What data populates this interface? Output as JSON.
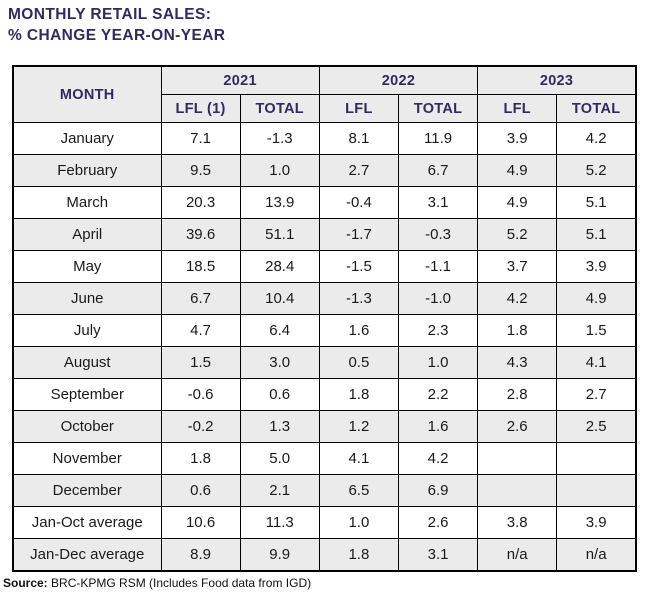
{
  "title": {
    "line1": "MONTHLY RETAIL SALES:",
    "line2": "% CHANGE YEAR-ON-YEAR"
  },
  "chart_data": {
    "type": "table",
    "title": "MONTHLY RETAIL SALES: % CHANGE YEAR-ON-YEAR",
    "month_header": "MONTH",
    "year_groups": [
      "2021",
      "2022",
      "2023"
    ],
    "sub_headers": [
      "LFL (1)",
      "TOTAL",
      "LFL",
      "TOTAL",
      "LFL",
      "TOTAL"
    ],
    "rows": [
      {
        "month": "January",
        "values": [
          "7.1",
          "-1.3",
          "8.1",
          "11.9",
          "3.9",
          "4.2"
        ]
      },
      {
        "month": "February",
        "values": [
          "9.5",
          "1.0",
          "2.7",
          "6.7",
          "4.9",
          "5.2"
        ]
      },
      {
        "month": "March",
        "values": [
          "20.3",
          "13.9",
          "-0.4",
          "3.1",
          "4.9",
          "5.1"
        ]
      },
      {
        "month": "April",
        "values": [
          "39.6",
          "51.1",
          "-1.7",
          "-0.3",
          "5.2",
          "5.1"
        ]
      },
      {
        "month": "May",
        "values": [
          "18.5",
          "28.4",
          "-1.5",
          "-1.1",
          "3.7",
          "3.9"
        ]
      },
      {
        "month": "June",
        "values": [
          "6.7",
          "10.4",
          "-1.3",
          "-1.0",
          "4.2",
          "4.9"
        ]
      },
      {
        "month": "July",
        "values": [
          "4.7",
          "6.4",
          "1.6",
          "2.3",
          "1.8",
          "1.5"
        ]
      },
      {
        "month": "August",
        "values": [
          "1.5",
          "3.0",
          "0.5",
          "1.0",
          "4.3",
          "4.1"
        ]
      },
      {
        "month": "September",
        "values": [
          "-0.6",
          "0.6",
          "1.8",
          "2.2",
          "2.8",
          "2.7"
        ]
      },
      {
        "month": "October",
        "values": [
          "-0.2",
          "1.3",
          "1.2",
          "1.6",
          "2.6",
          "2.5"
        ]
      },
      {
        "month": "November",
        "values": [
          "1.8",
          "5.0",
          "4.1",
          "4.2",
          "",
          ""
        ]
      },
      {
        "month": "December",
        "values": [
          "0.6",
          "2.1",
          "6.5",
          "6.9",
          "",
          ""
        ]
      },
      {
        "month": "Jan-Oct average",
        "values": [
          "10.6",
          "11.3",
          "1.0",
          "2.6",
          "3.8",
          "3.9"
        ]
      },
      {
        "month": "Jan-Dec average",
        "values": [
          "8.9",
          "9.9",
          "1.8",
          "3.1",
          "n/a",
          "n/a"
        ]
      }
    ]
  },
  "source": {
    "label": "Source:",
    "text": "BRC-KPMG RSM (Includes Food data from IGD)"
  },
  "colors": {
    "header_text": "#302a5e",
    "row_shading": "#ebebeb",
    "border": "#000000",
    "background": "#ffffff"
  }
}
